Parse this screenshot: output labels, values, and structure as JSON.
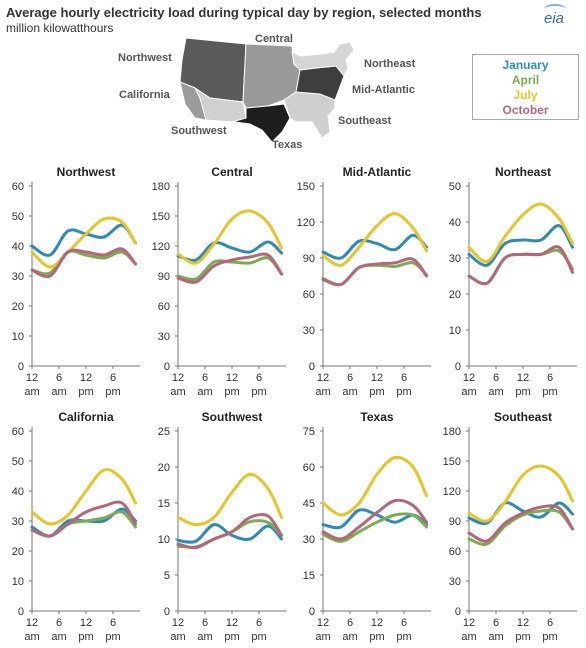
{
  "title": "Average hourly electricity load during typical day by region, selected months",
  "subtitle": "million kilowatthours",
  "logo": "eia",
  "colors": {
    "January": "#2e8bb8",
    "April": "#79ad52",
    "July": "#e6c52a",
    "October": "#b5677a"
  },
  "map_regions": {
    "northwest": "Northwest",
    "central": "Central",
    "northeast": "Northeast",
    "california": "California",
    "mid_atlantic": "Mid-Atlantic",
    "southwest": "Southwest",
    "southeast": "Southeast",
    "texas": "Texas"
  },
  "legend": [
    "January",
    "April",
    "July",
    "October"
  ],
  "chart_data": [
    {
      "type": "line",
      "title": "Northwest",
      "ylim": [
        0,
        60
      ],
      "yticks": [
        0,
        10,
        20,
        30,
        40,
        50,
        60
      ],
      "xtick_labels": [
        [
          "12",
          "am"
        ],
        [
          "6",
          "am"
        ],
        [
          "12",
          "pm"
        ],
        [
          "6",
          "pm"
        ]
      ],
      "x": [
        0,
        4,
        8,
        12,
        16,
        20,
        23
      ],
      "series": [
        {
          "name": "January",
          "values": [
            40,
            37,
            45,
            44,
            43,
            47,
            41
          ]
        },
        {
          "name": "April",
          "values": [
            32,
            31,
            38,
            37,
            36,
            38,
            34
          ]
        },
        {
          "name": "July",
          "values": [
            38,
            33,
            38,
            44,
            49,
            48,
            41
          ]
        },
        {
          "name": "October",
          "values": [
            32,
            30,
            38,
            38,
            37,
            39,
            34
          ]
        }
      ]
    },
    {
      "type": "line",
      "title": "Central",
      "ylim": [
        0,
        180
      ],
      "yticks": [
        0,
        30,
        60,
        90,
        120,
        150,
        180
      ],
      "xtick_labels": [
        [
          "12",
          "am"
        ],
        [
          "6",
          "am"
        ],
        [
          "12",
          "pm"
        ],
        [
          "6",
          "pm"
        ]
      ],
      "x": [
        0,
        4,
        8,
        12,
        16,
        20,
        23
      ],
      "series": [
        {
          "name": "January",
          "values": [
            110,
            106,
            123,
            118,
            114,
            124,
            113
          ]
        },
        {
          "name": "April",
          "values": [
            90,
            87,
            104,
            104,
            103,
            108,
            92
          ]
        },
        {
          "name": "July",
          "values": [
            112,
            103,
            122,
            147,
            155,
            143,
            118
          ]
        },
        {
          "name": "October",
          "values": [
            88,
            84,
            100,
            106,
            109,
            111,
            92
          ]
        }
      ]
    },
    {
      "type": "line",
      "title": "Mid-Atlantic",
      "ylim": [
        0,
        150
      ],
      "yticks": [
        0,
        30,
        60,
        90,
        120,
        150
      ],
      "xtick_labels": [
        [
          "12",
          "am"
        ],
        [
          "6",
          "am"
        ],
        [
          "12",
          "pm"
        ],
        [
          "6",
          "pm"
        ]
      ],
      "x": [
        0,
        4,
        8,
        12,
        16,
        20,
        23
      ],
      "series": [
        {
          "name": "January",
          "values": [
            95,
            90,
            104,
            102,
            97,
            109,
            99
          ]
        },
        {
          "name": "April",
          "values": [
            73,
            68,
            82,
            84,
            83,
            86,
            76
          ]
        },
        {
          "name": "July",
          "values": [
            92,
            84,
            99,
            117,
            127,
            115,
            96
          ]
        },
        {
          "name": "October",
          "values": [
            72,
            68,
            82,
            85,
            86,
            89,
            75
          ]
        }
      ]
    },
    {
      "type": "line",
      "title": "Northeast",
      "ylim": [
        0,
        50
      ],
      "yticks": [
        0,
        10,
        20,
        30,
        40,
        50
      ],
      "xtick_labels": [
        [
          "12",
          "am"
        ],
        [
          "6",
          "am"
        ],
        [
          "12",
          "pm"
        ],
        [
          "6",
          "pm"
        ]
      ],
      "x": [
        0,
        4,
        8,
        12,
        16,
        20,
        23
      ],
      "series": [
        {
          "name": "January",
          "values": [
            31,
            28,
            34,
            35,
            35,
            39,
            33
          ]
        },
        {
          "name": "April",
          "values": [
            25,
            23,
            30,
            31,
            31,
            32,
            27
          ]
        },
        {
          "name": "July",
          "values": [
            33,
            29,
            36,
            42,
            45,
            41,
            34
          ]
        },
        {
          "name": "October",
          "values": [
            25,
            23,
            30,
            31,
            31,
            33,
            26
          ]
        }
      ]
    },
    {
      "type": "line",
      "title": "California",
      "ylim": [
        0,
        60
      ],
      "yticks": [
        0,
        10,
        20,
        30,
        40,
        50,
        60
      ],
      "xtick_labels": [
        [
          "12",
          "am"
        ],
        [
          "6",
          "am"
        ],
        [
          "12",
          "pm"
        ],
        [
          "6",
          "pm"
        ]
      ],
      "x": [
        0,
        4,
        8,
        12,
        16,
        20,
        23
      ],
      "series": [
        {
          "name": "January",
          "values": [
            28,
            25,
            30,
            30,
            30,
            34,
            30
          ]
        },
        {
          "name": "April",
          "values": [
            27,
            25,
            29,
            30,
            31,
            33,
            28
          ]
        },
        {
          "name": "July",
          "values": [
            33,
            29,
            32,
            40,
            47,
            44,
            36
          ]
        },
        {
          "name": "October",
          "values": [
            27,
            25,
            29,
            33,
            35,
            36,
            29
          ]
        }
      ]
    },
    {
      "type": "line",
      "title": "Southwest",
      "ylim": [
        0,
        25
      ],
      "yticks": [
        0,
        5,
        10,
        15,
        20,
        25
      ],
      "xtick_labels": [
        [
          "12",
          "am"
        ],
        [
          "6",
          "am"
        ],
        [
          "12",
          "pm"
        ],
        [
          "6",
          "pm"
        ]
      ],
      "x": [
        0,
        4,
        8,
        12,
        16,
        20,
        23
      ],
      "series": [
        {
          "name": "January",
          "values": [
            9.8,
            9.7,
            12,
            10.5,
            10,
            11.8,
            10
          ]
        },
        {
          "name": "April",
          "values": [
            9,
            8.9,
            10,
            11,
            12.4,
            12.3,
            10.5
          ]
        },
        {
          "name": "July",
          "values": [
            13,
            12,
            13,
            16.5,
            19,
            17,
            13
          ]
        },
        {
          "name": "October",
          "values": [
            9.3,
            8.8,
            10,
            11,
            13,
            13.2,
            10.5
          ]
        }
      ]
    },
    {
      "type": "line",
      "title": "Texas",
      "ylim": [
        0,
        75
      ],
      "yticks": [
        0,
        15,
        30,
        45,
        60,
        75
      ],
      "xtick_labels": [
        [
          "12",
          "am"
        ],
        [
          "6",
          "am"
        ],
        [
          "12",
          "pm"
        ],
        [
          "6",
          "pm"
        ]
      ],
      "x": [
        0,
        4,
        8,
        12,
        16,
        20,
        23
      ],
      "series": [
        {
          "name": "January",
          "values": [
            36,
            35,
            42,
            40,
            37,
            40,
            36
          ]
        },
        {
          "name": "April",
          "values": [
            32,
            29,
            33,
            37,
            40,
            40,
            35
          ]
        },
        {
          "name": "July",
          "values": [
            45,
            40,
            45,
            57,
            64,
            60,
            48
          ]
        },
        {
          "name": "October",
          "values": [
            33,
            30,
            35,
            41,
            46,
            44,
            37
          ]
        }
      ]
    },
    {
      "type": "line",
      "title": "Southeast",
      "ylim": [
        0,
        180
      ],
      "yticks": [
        0,
        30,
        60,
        90,
        120,
        150,
        180
      ],
      "xtick_labels": [
        [
          "12",
          "am"
        ],
        [
          "6",
          "am"
        ],
        [
          "12",
          "pm"
        ],
        [
          "6",
          "pm"
        ]
      ],
      "x": [
        0,
        4,
        8,
        12,
        16,
        20,
        23
      ],
      "series": [
        {
          "name": "January",
          "values": [
            93,
            88,
            108,
            100,
            94,
            108,
            97
          ]
        },
        {
          "name": "April",
          "values": [
            72,
            67,
            85,
            96,
            100,
            99,
            82
          ]
        },
        {
          "name": "July",
          "values": [
            98,
            90,
            109,
            136,
            145,
            135,
            110
          ]
        },
        {
          "name": "October",
          "values": [
            78,
            70,
            88,
            98,
            104,
            103,
            82
          ]
        }
      ]
    }
  ]
}
